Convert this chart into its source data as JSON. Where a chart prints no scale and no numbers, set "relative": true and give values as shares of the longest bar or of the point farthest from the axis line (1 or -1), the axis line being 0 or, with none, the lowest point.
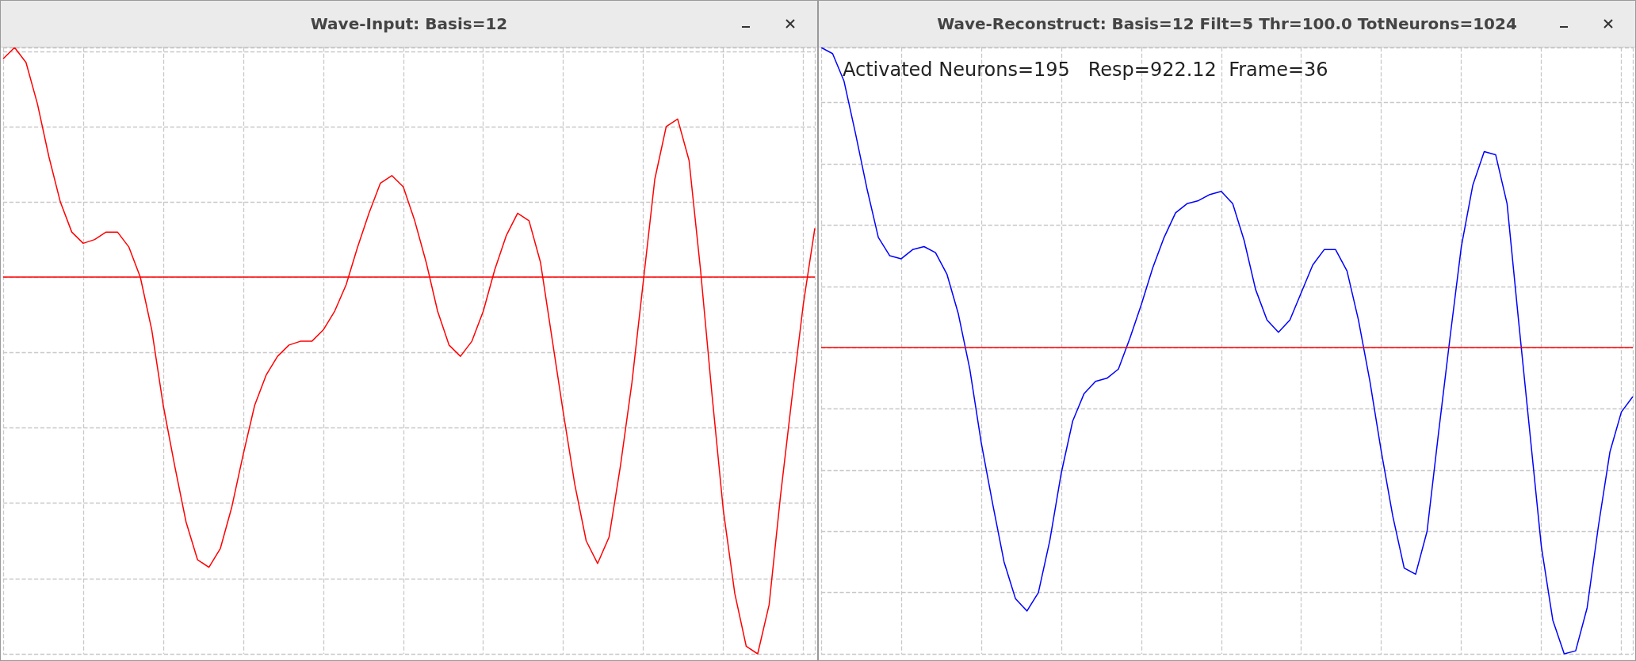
{
  "chart_data": [
    {
      "type": "line",
      "title": "Wave-Input: Basis=12",
      "relative": true,
      "grid": true,
      "marker": "none",
      "line_style": "solid",
      "categories": [
        null,
        null,
        null,
        null,
        null,
        null,
        null,
        null,
        null,
        null,
        null,
        null,
        null,
        null,
        null,
        null,
        null,
        null,
        null,
        null,
        null,
        null,
        null,
        null,
        null,
        null,
        null,
        null,
        null,
        null,
        null,
        null,
        null,
        null,
        null,
        null,
        null,
        null,
        null,
        null,
        null,
        null,
        null,
        null,
        null,
        null,
        null,
        null,
        null,
        null,
        null,
        null,
        null,
        null,
        null,
        null,
        null,
        null,
        null,
        null,
        null,
        null,
        null,
        null,
        null,
        null,
        null,
        null,
        null,
        null,
        null,
        null
      ],
      "series": [
        {
          "color": "#ff0000",
          "values": [
            0.58,
            0.61,
            0.57,
            0.46,
            0.32,
            0.2,
            0.12,
            0.09,
            0.1,
            0.12,
            0.12,
            0.08,
            0,
            -0.14,
            -0.34,
            -0.5,
            -0.65,
            -0.75,
            -0.77,
            -0.72,
            -0.61,
            -0.47,
            -0.34,
            -0.26,
            -0.21,
            -0.18,
            -0.17,
            -0.17,
            -0.14,
            -0.09,
            -0.02,
            0.08,
            0.17,
            0.25,
            0.27,
            0.24,
            0.15,
            0.04,
            -0.09,
            -0.18,
            -0.21,
            -0.17,
            -0.09,
            0.02,
            0.11,
            0.17,
            0.15,
            0.04,
            -0.16,
            -0.36,
            -0.55,
            -0.7,
            -0.76,
            -0.69,
            -0.5,
            -0.28,
            -0.01,
            0.26,
            0.4,
            0.42,
            0.31,
            0.02,
            -0.31,
            -0.62,
            -0.84,
            -0.98,
            -1,
            -0.87,
            -0.58,
            -0.32,
            -0.07,
            0.13
          ]
        }
      ],
      "ref_lines": [
        {
          "axis": "y",
          "value": 0,
          "color": "#ff0000"
        }
      ]
    },
    {
      "type": "line",
      "title": "Wave-Reconstruct: Basis=12  Filt=5  Thr=100.0  TotNeurons=1024",
      "relative": true,
      "grid": true,
      "marker": "none",
      "line_style": "solid",
      "annotations": [
        "Activated Neurons=195   Resp=922.12  Frame=36"
      ],
      "categories": [
        null,
        null,
        null,
        null,
        null,
        null,
        null,
        null,
        null,
        null,
        null,
        null,
        null,
        null,
        null,
        null,
        null,
        null,
        null,
        null,
        null,
        null,
        null,
        null,
        null,
        null,
        null,
        null,
        null,
        null,
        null,
        null,
        null,
        null,
        null,
        null,
        null,
        null,
        null,
        null,
        null,
        null,
        null,
        null,
        null,
        null,
        null,
        null,
        null,
        null,
        null,
        null,
        null,
        null,
        null,
        null,
        null,
        null,
        null,
        null,
        null,
        null,
        null,
        null,
        null,
        null,
        null,
        null,
        null,
        null,
        null,
        null
      ],
      "series": [
        {
          "color": "#0000ff",
          "values": [
            0.98,
            0.96,
            0.87,
            0.7,
            0.52,
            0.36,
            0.3,
            0.29,
            0.32,
            0.33,
            0.31,
            0.24,
            0.11,
            -0.07,
            -0.31,
            -0.51,
            -0.7,
            -0.82,
            -0.86,
            -0.8,
            -0.63,
            -0.41,
            -0.24,
            -0.15,
            -0.11,
            -0.1,
            -0.07,
            0.03,
            0.14,
            0.26,
            0.36,
            0.44,
            0.47,
            0.48,
            0.5,
            0.51,
            0.47,
            0.35,
            0.19,
            0.09,
            0.05,
            0.09,
            0.18,
            0.27,
            0.32,
            0.32,
            0.25,
            0.09,
            -0.11,
            -0.34,
            -0.55,
            -0.72,
            -0.74,
            -0.6,
            -0.28,
            0.03,
            0.33,
            0.53,
            0.64,
            0.63,
            0.47,
            0.09,
            -0.28,
            -0.65,
            -0.89,
            -1,
            -0.99,
            -0.85,
            -0.58,
            -0.34,
            -0.21,
            -0.16
          ]
        }
      ],
      "ref_lines": [
        {
          "axis": "y",
          "value": 0,
          "color": "#ff0000"
        }
      ]
    }
  ]
}
